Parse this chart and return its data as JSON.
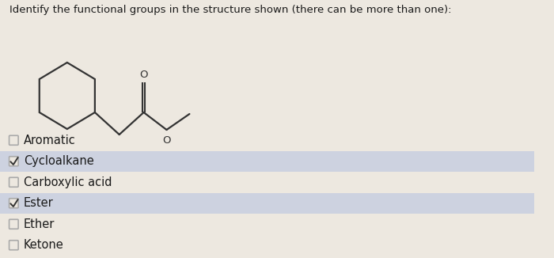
{
  "title": "Identify the functional groups in the structure shown (there can be more than one):",
  "options": [
    "Aromatic",
    "Cycloalkane",
    "Carboxylic acid",
    "Ester",
    "Ether",
    "Ketone"
  ],
  "checked": [
    false,
    true,
    false,
    true,
    false,
    false
  ],
  "bg_color": "#ede8e0",
  "row_highlight_color": "#cdd2e0",
  "text_color": "#1a1a1a",
  "check_color": "#333333",
  "title_fontsize": 9.5,
  "option_fontsize": 10.5,
  "checkbox_color": "#aaaaaa"
}
